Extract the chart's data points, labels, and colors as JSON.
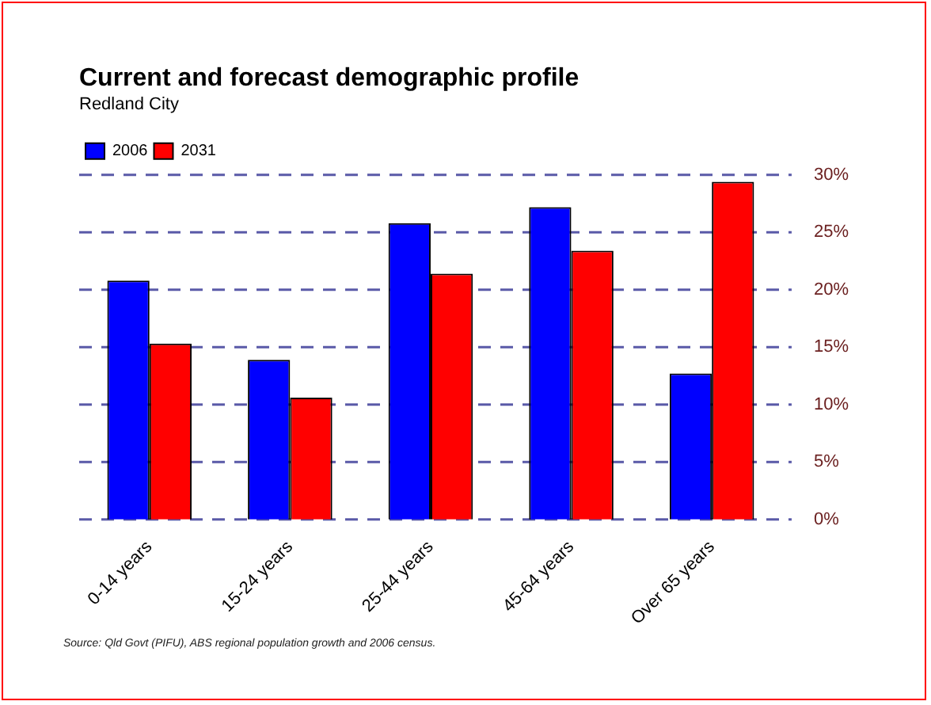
{
  "chart_data": {
    "type": "bar",
    "title": "Current and forecast demographic profile",
    "subtitle": "Redland City",
    "categories": [
      "0-14 years",
      "15-24 years",
      "25-44 years",
      "45-64 years",
      "Over 65 years"
    ],
    "series": [
      {
        "name": "2006",
        "color": "#0000ff",
        "values": [
          20.8,
          13.9,
          25.8,
          27.2,
          12.7
        ]
      },
      {
        "name": "2031",
        "color": "#ff0000",
        "values": [
          15.3,
          10.6,
          21.4,
          23.4,
          29.4
        ]
      }
    ],
    "ylim": [
      0,
      30
    ],
    "yticks": [
      {
        "value": 0,
        "label": "0%"
      },
      {
        "value": 5,
        "label": "5%"
      },
      {
        "value": 10,
        "label": "10%"
      },
      {
        "value": 15,
        "label": "15%"
      },
      {
        "value": 20,
        "label": "20%"
      },
      {
        "value": 25,
        "label": "25%"
      },
      {
        "value": 30,
        "label": "30%"
      }
    ],
    "grid": "y",
    "legend": "top left",
    "annotations": [
      "Source: Qld Govt (PIFU), ABS regional population growth and 2006 census."
    ]
  }
}
